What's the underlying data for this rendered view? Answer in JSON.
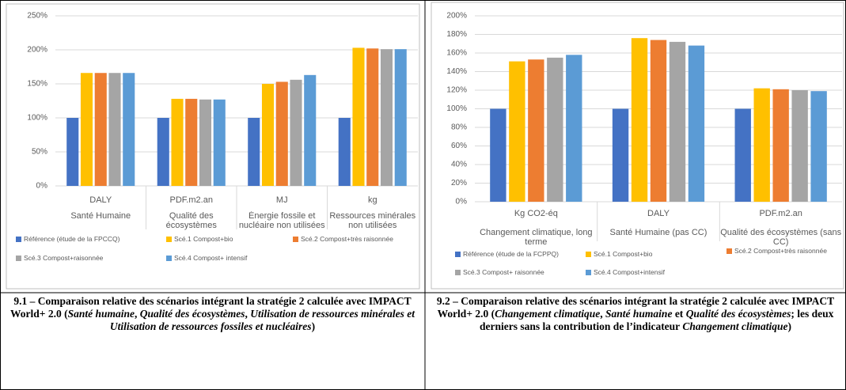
{
  "chart_data": [
    {
      "type": "bar",
      "categories": [
        "DALY",
        "PDF.m2.an",
        "MJ",
        "kg"
      ],
      "category_groups": [
        "Santé Humaine",
        "Qualité des écosystèmes",
        "Énergie fossile et nucléaire non utilisées",
        "Ressources minérales non utilisées"
      ],
      "series": [
        {
          "name": "Référence (étude de la FPCCQ)",
          "color": "#4472c4",
          "values": [
            100,
            100,
            100,
            100
          ]
        },
        {
          "name": "Scé.1 Compost+bio",
          "color": "#ffc000",
          "values": [
            166,
            128,
            150,
            203
          ]
        },
        {
          "name": "Scé.2 Compost+très raisonnée",
          "color": "#ed7d31",
          "values": [
            166,
            128,
            153,
            202
          ]
        },
        {
          "name": "Scé.3 Compost+raisonnée",
          "color": "#a5a5a5",
          "values": [
            166,
            127,
            156,
            201
          ]
        },
        {
          "name": "Scé.4 Compost+ intensif",
          "color": "#5b9bd5",
          "values": [
            166,
            127,
            163,
            201
          ]
        }
      ],
      "ylim": [
        0,
        250
      ],
      "yticks": [
        {
          "value": 0,
          "label": "0%"
        },
        {
          "value": 50,
          "label": "50%"
        },
        {
          "value": 100,
          "label": "100%"
        },
        {
          "value": 150,
          "label": "150%"
        },
        {
          "value": 200,
          "label": "200%"
        },
        {
          "value": 250,
          "label": "250%"
        }
      ],
      "grid": true
    },
    {
      "type": "bar",
      "categories": [
        "Kg CO2-éq",
        "DALY",
        "PDF.m2.an"
      ],
      "category_groups": [
        "Changement climatique, long terme",
        "Santé Humaine (pas CC)",
        "Qualité des écosystèmes (sans CC)"
      ],
      "series": [
        {
          "name": "Référence (étude de la FCPPQ)",
          "color": "#4472c4",
          "values": [
            100,
            100,
            100
          ]
        },
        {
          "name": "Scé.1 Compost+bio",
          "color": "#ffc000",
          "values": [
            151,
            176,
            122
          ]
        },
        {
          "name": "Scé.2 Compost+très raisonnée",
          "color": "#ed7d31",
          "values": [
            153,
            174,
            121
          ]
        },
        {
          "name": "Scé.3 Compost+ raisonnée",
          "color": "#a5a5a5",
          "values": [
            155,
            172,
            120
          ]
        },
        {
          "name": "Scé.4 Compost+intensif",
          "color": "#5b9bd5",
          "values": [
            158,
            168,
            119
          ]
        }
      ],
      "ylim": [
        0,
        200
      ],
      "yticks": [
        {
          "value": 0,
          "label": "0%"
        },
        {
          "value": 20,
          "label": "20%"
        },
        {
          "value": 40,
          "label": "40%"
        },
        {
          "value": 60,
          "label": "60%"
        },
        {
          "value": 80,
          "label": "80%"
        },
        {
          "value": 100,
          "label": "100%"
        },
        {
          "value": 120,
          "label": "120%"
        },
        {
          "value": 140,
          "label": "140%"
        },
        {
          "value": 160,
          "label": "160%"
        },
        {
          "value": 180,
          "label": "180%"
        },
        {
          "value": 200,
          "label": "200%"
        }
      ],
      "grid": true
    }
  ],
  "captions": [
    [
      {
        "text": "9.1 – Comparaison relative des scénarios intégrant la stratégie 2 calculée avec IMPACT World+ 2.0 (",
        "italic": false
      },
      {
        "text": "Santé humaine",
        "italic": true
      },
      {
        "text": ", ",
        "italic": false
      },
      {
        "text": "Qualité des écosystèmes",
        "italic": true
      },
      {
        "text": ", ",
        "italic": false
      },
      {
        "text": "Utilisation de ressources minérales et Utilisation de ressources fossiles et nucléaires",
        "italic": true
      },
      {
        "text": ")",
        "italic": false
      }
    ],
    [
      {
        "text": "9.2 – Comparaison relative des scénarios intégrant la stratégie 2 calculée avec IMPACT World+ 2.0 (",
        "italic": false
      },
      {
        "text": "Changement climatique",
        "italic": true
      },
      {
        "text": ", ",
        "italic": false
      },
      {
        "text": "Santé humaine",
        "italic": true
      },
      {
        "text": " et ",
        "italic": false
      },
      {
        "text": "Qualité des écosystèmes",
        "italic": true
      },
      {
        "text": "; les deux derniers sans la contribution de l’indicateur ",
        "italic": false
      },
      {
        "text": "Changement climatique",
        "italic": true
      },
      {
        "text": ")",
        "italic": false
      }
    ]
  ]
}
